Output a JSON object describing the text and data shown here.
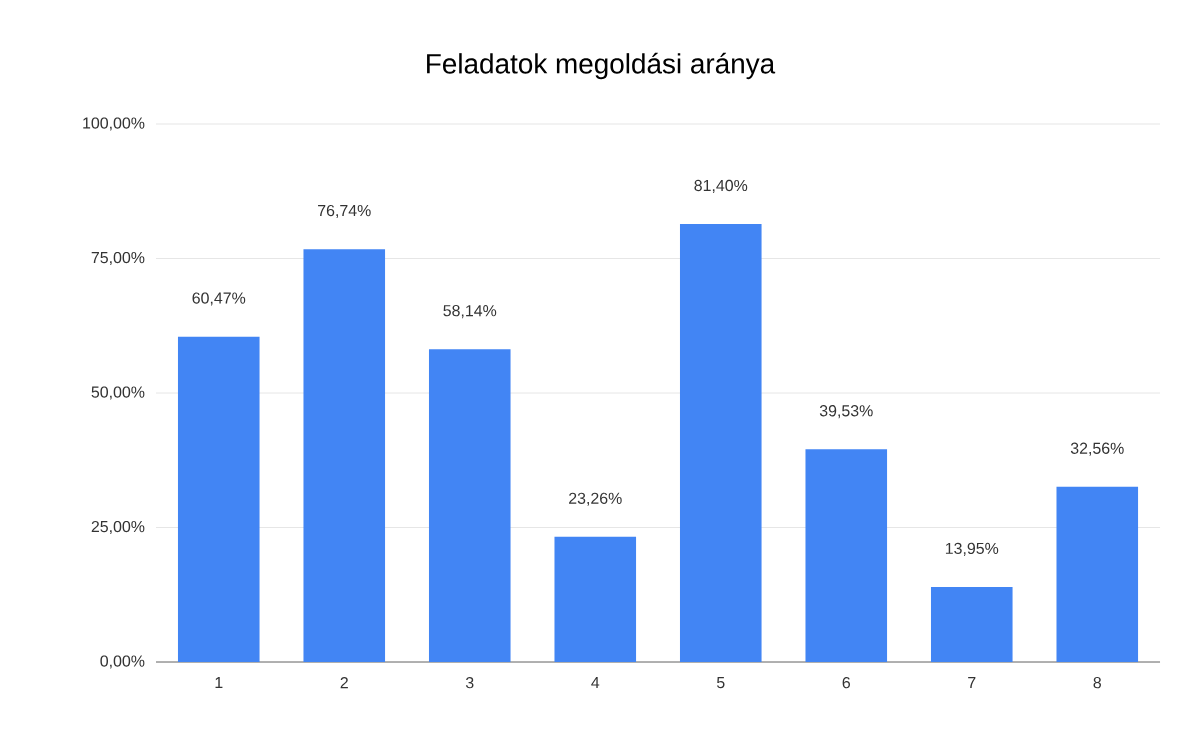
{
  "chart_data": {
    "type": "bar",
    "title": "Feladatok megoldási aránya",
    "categories": [
      "1",
      "2",
      "3",
      "4",
      "5",
      "6",
      "7",
      "8"
    ],
    "values": [
      60.47,
      76.74,
      58.14,
      23.26,
      81.4,
      39.53,
      13.95,
      32.56
    ],
    "value_labels": [
      "60,47%",
      "76,74%",
      "58,14%",
      "23,26%",
      "81,40%",
      "39,53%",
      "13,95%",
      "32,56%"
    ],
    "color": "#4285f4",
    "ylim": [
      0,
      100
    ],
    "yticks": [
      {
        "value": 0,
        "label": "0,00%"
      },
      {
        "value": 25,
        "label": "25,00%"
      },
      {
        "value": 50,
        "label": "50,00%"
      },
      {
        "value": 75,
        "label": "75,00%"
      },
      {
        "value": 100,
        "label": "100,00%"
      }
    ],
    "grid": "y"
  }
}
